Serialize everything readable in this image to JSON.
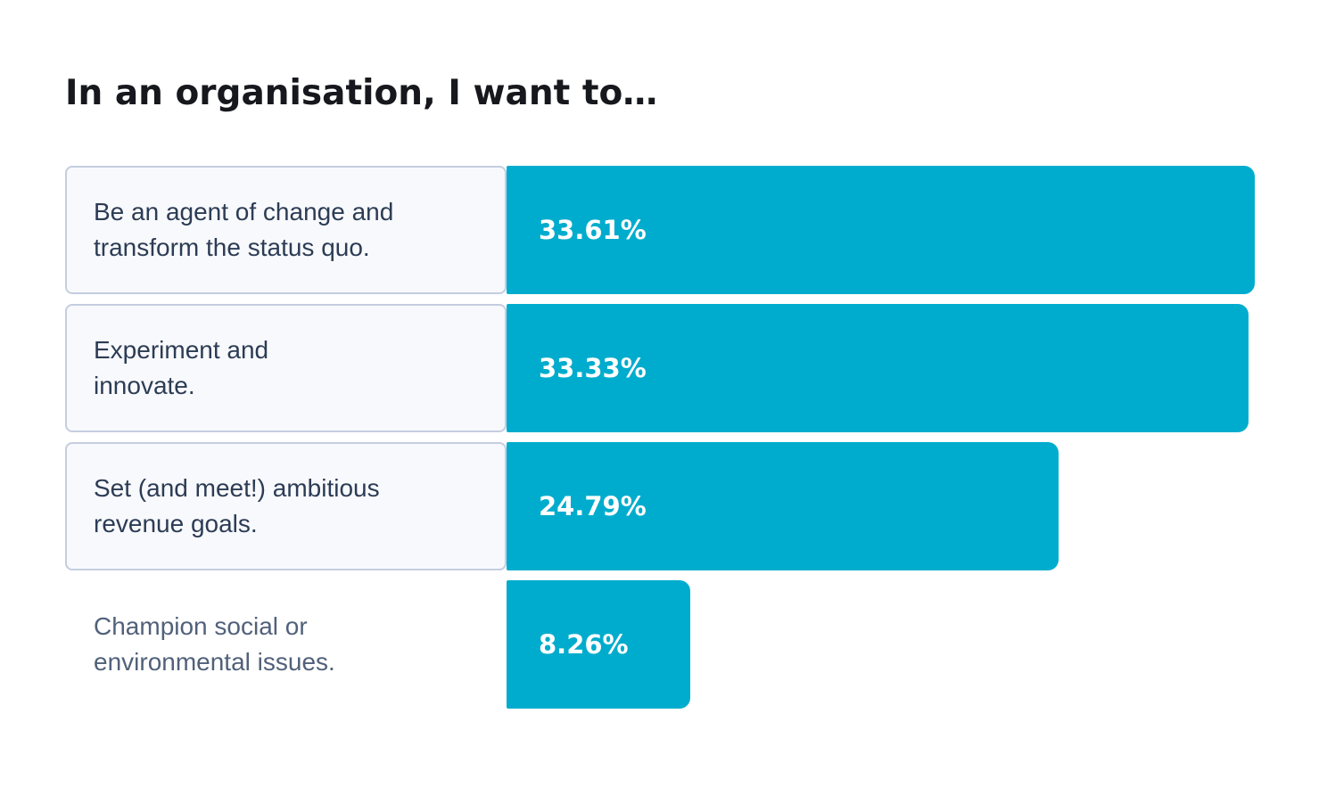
{
  "chart_data": {
    "type": "bar",
    "orientation": "horizontal",
    "title": "In an organisation, I want to…",
    "categories": [
      "Be an agent of change and transform the status quo.",
      "Experiment and innovate.",
      "Set (and meet!) ambitious revenue goals.",
      "Champion social or environmental issues."
    ],
    "category_lines": [
      [
        "Be an agent of change and",
        "transform the status quo."
      ],
      [
        "Experiment and",
        "innovate."
      ],
      [
        "Set (and meet!) ambitious",
        "revenue goals."
      ],
      [
        "Champion social or",
        "environmental issues."
      ]
    ],
    "values": [
      33.61,
      33.33,
      24.79,
      8.26
    ],
    "value_labels": [
      "33.61%",
      "33.33%",
      "24.79%",
      "8.26%"
    ],
    "label_boxed": [
      true,
      true,
      true,
      false
    ],
    "bar_color": "#00accd",
    "value_label_color": "#ffffff",
    "label_text_color": "#2c3c55",
    "unboxed_label_text_color": "#51617a",
    "label_box_fill": "#f8f9fc",
    "label_box_border": "#c5cde0",
    "title_color": "#16181d",
    "scale_max": 33.61,
    "xlim": [
      0,
      33.61
    ],
    "grid": false,
    "legend": "none",
    "axis_visible": false
  }
}
